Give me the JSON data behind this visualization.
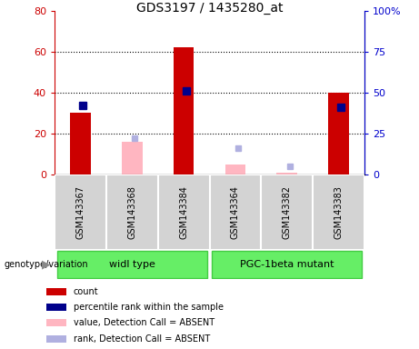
{
  "title": "GDS3197 / 1435280_at",
  "categories": [
    "GSM143367",
    "GSM143368",
    "GSM143384",
    "GSM143364",
    "GSM143382",
    "GSM143383"
  ],
  "group_labels": [
    "widl type",
    "PGC-1beta mutant"
  ],
  "count_values": [
    30,
    null,
    62,
    null,
    null,
    40
  ],
  "count_absent_values": [
    null,
    16,
    null,
    5,
    1,
    null
  ],
  "rank_present_values": [
    42,
    null,
    51,
    null,
    null,
    41
  ],
  "rank_absent_values": [
    null,
    22,
    null,
    16,
    5,
    null
  ],
  "ylim_left": [
    0,
    80
  ],
  "ylim_right": [
    0,
    100
  ],
  "yticks_left": [
    0,
    20,
    40,
    60,
    80
  ],
  "yticks_right": [
    0,
    25,
    50,
    75,
    100
  ],
  "ytick_labels_left": [
    "0",
    "20",
    "40",
    "60",
    "80"
  ],
  "ytick_labels_right": [
    "0",
    "25",
    "50",
    "75",
    "100%"
  ],
  "left_axis_color": "#cc0000",
  "right_axis_color": "#0000cc",
  "bg_color": "#ffffff",
  "bar_color_present": "#cc0000",
  "bar_color_absent": "#ffb6c1",
  "rank_color_present": "#00008b",
  "rank_color_absent": "#b0b0e0",
  "grid_color": "#000000",
  "sample_box_color": "#cccccc",
  "group_box_color": "#66ee66",
  "legend_items": [
    {
      "label": "count",
      "color": "#cc0000"
    },
    {
      "label": "percentile rank within the sample",
      "color": "#00008b"
    },
    {
      "label": "value, Detection Call = ABSENT",
      "color": "#ffb6c1"
    },
    {
      "label": "rank, Detection Call = ABSENT",
      "color": "#b0b0e0"
    }
  ],
  "bar_width": 0.4,
  "figsize": [
    4.61,
    3.84
  ],
  "dpi": 100
}
